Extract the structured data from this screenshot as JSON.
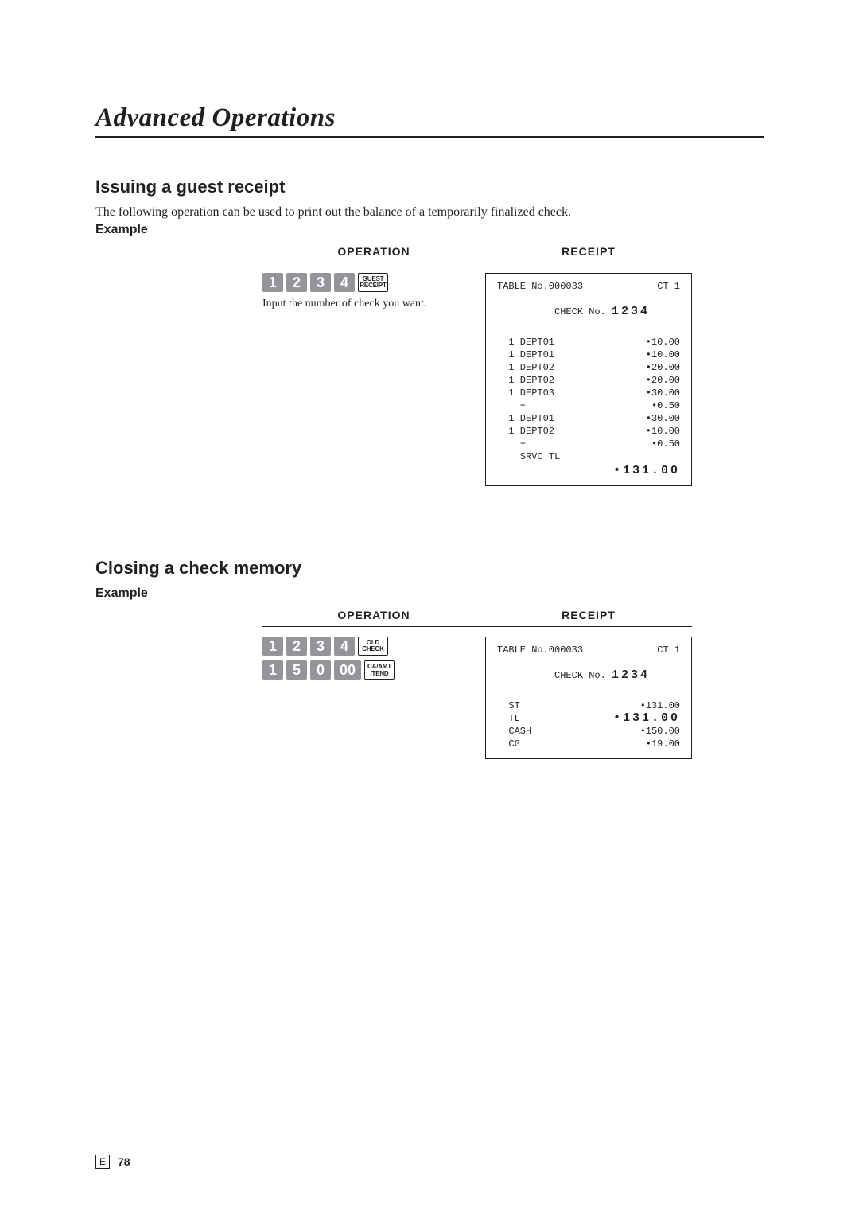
{
  "page": {
    "title": "Advanced Operations",
    "footer_letter": "E",
    "footer_page": "78"
  },
  "section1": {
    "heading": "Issuing a guest receipt",
    "intro": "The following operation can be used to print out the balance of a temporarily finalized check.",
    "example_label": "Example",
    "operation_header": "OPERATION",
    "receipt_header": "RECEIPT",
    "keys": {
      "d1": "1",
      "d2": "2",
      "d3": "3",
      "d4": "4",
      "fn_line1": "GUEST",
      "fn_line2": "RECEIPT"
    },
    "note": "Input the number of check you want.",
    "receipt": {
      "table_line_left": "TABLE No.000033",
      "table_line_right": "CT    1",
      "check_label": "CHECK No. ",
      "check_no": "1234",
      "items": [
        {
          "left": "  1 DEPT01",
          "right": "•10.00"
        },
        {
          "left": "  1 DEPT01",
          "right": "•10.00"
        },
        {
          "left": "  1 DEPT02",
          "right": "•20.00"
        },
        {
          "left": "  1 DEPT02",
          "right": "•20.00"
        },
        {
          "left": "  1 DEPT03",
          "right": "•30.00"
        },
        {
          "left": "    +",
          "right": "•0.50"
        },
        {
          "left": "  1 DEPT01",
          "right": "•30.00"
        },
        {
          "left": "  1 DEPT02",
          "right": "•10.00"
        },
        {
          "left": "    +",
          "right": "•0.50"
        }
      ],
      "srvc_label": "    SRVC TL",
      "total": "•131.00"
    }
  },
  "section2": {
    "heading": "Closing a check memory",
    "example_label": "Example",
    "operation_header": "OPERATION",
    "receipt_header": "RECEIPT",
    "row1": {
      "d1": "1",
      "d2": "2",
      "d3": "3",
      "d4": "4",
      "fn_line1": "OLD",
      "fn_line2": "CHECK"
    },
    "row2": {
      "d1": "1",
      "d2": "5",
      "d3": "0",
      "d4": "00",
      "fn_line1": "CA/AMT",
      "fn_line2": "/TEND"
    },
    "receipt": {
      "table_line_left": "TABLE No.000033",
      "table_line_right": "CT    1",
      "check_label": "CHECK No. ",
      "check_no": "1234",
      "items": [
        {
          "left": "  ST",
          "right": "•131.00"
        }
      ],
      "tl_label": "  TL",
      "tl_value": "•131.00",
      "items2": [
        {
          "left": "  CASH",
          "right": "•150.00"
        },
        {
          "left": "  CG",
          "right": "•19.00"
        }
      ]
    }
  }
}
